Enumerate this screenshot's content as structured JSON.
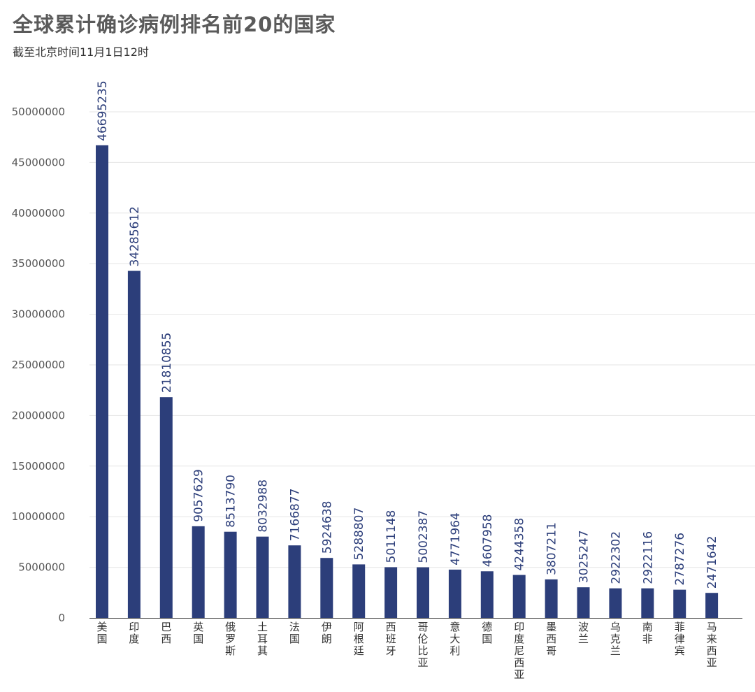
{
  "header": {
    "title": "全球累计确诊病例排名前20的国家",
    "subtitle": "截至北京时间11月1日12时"
  },
  "colors": {
    "bar": "#2c3e7a",
    "grid": "#e6e6e6",
    "axis": "#444444"
  },
  "chart_data": {
    "type": "bar",
    "title": "全球累计确诊病例排名前20的国家",
    "subtitle": "截至北京时间11月1日12时",
    "xlabel": "",
    "ylabel": "",
    "ylim": [
      0,
      50000000
    ],
    "yticks": [
      0,
      5000000,
      10000000,
      15000000,
      20000000,
      25000000,
      30000000,
      35000000,
      40000000,
      45000000,
      50000000
    ],
    "grid": true,
    "legend": "none",
    "categories": [
      "美国",
      "印度",
      "巴西",
      "英国",
      "俄罗斯",
      "土耳其",
      "法国",
      "伊朗",
      "阿根廷",
      "西班牙",
      "哥伦比亚",
      "意大利",
      "德国",
      "印度尼西亚",
      "墨西哥",
      "波兰",
      "乌克兰",
      "南非",
      "菲律宾",
      "马来西亚"
    ],
    "values": [
      46695235,
      34285612,
      21810855,
      9057629,
      8513790,
      8032988,
      7166877,
      5924638,
      5288807,
      5011148,
      5002387,
      4771964,
      4607958,
      4244358,
      3807211,
      3025247,
      2922302,
      2922116,
      2787276,
      2471642
    ]
  }
}
